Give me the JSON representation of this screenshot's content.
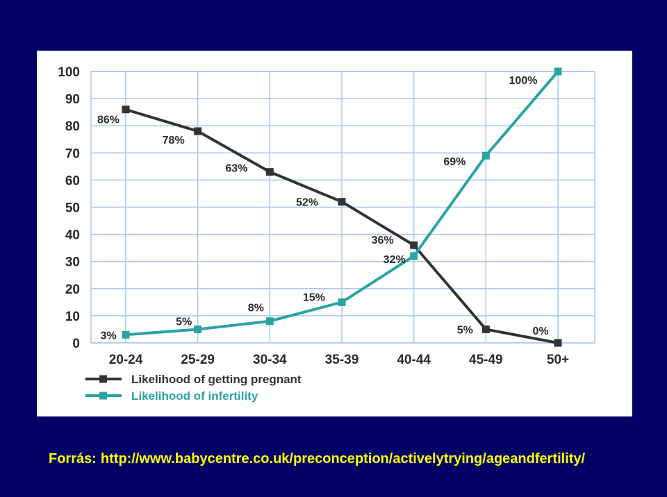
{
  "source": {
    "prefix": "Forrás:",
    "url": "http://www.babycentre.co.uk/preconception/activelytrying/ageandfertility/"
  },
  "colors": {
    "background": "#000066",
    "panel": "#ffffff",
    "grid": "#a9c7ef",
    "pregnant_series": "#333333",
    "infertility_series": "#2aa3a3",
    "source_text": "#ffff00"
  },
  "chart_data": {
    "type": "line",
    "categories": [
      "20-24",
      "25-29",
      "30-34",
      "35-39",
      "40-44",
      "45-49",
      "50+"
    ],
    "ylim": [
      0,
      100
    ],
    "yticks": [
      0,
      10,
      20,
      30,
      40,
      50,
      60,
      70,
      80,
      90,
      100
    ],
    "grid": true,
    "legend_position": "bottom-left",
    "series": [
      {
        "name": "Likelihood of getting pregnant",
        "values": [
          86,
          78,
          63,
          52,
          36,
          5,
          0
        ],
        "labels": [
          "86%",
          "78%",
          "63%",
          "52%",
          "36%",
          "5%",
          "0%"
        ],
        "color": "#333333"
      },
      {
        "name": "Likelihood of infertility",
        "values": [
          3,
          5,
          8,
          15,
          32,
          69,
          100
        ],
        "labels": [
          "3%",
          "5%",
          "8%",
          "15%",
          "32%",
          "69%",
          "100%"
        ],
        "color": "#2aa3a3"
      }
    ]
  }
}
